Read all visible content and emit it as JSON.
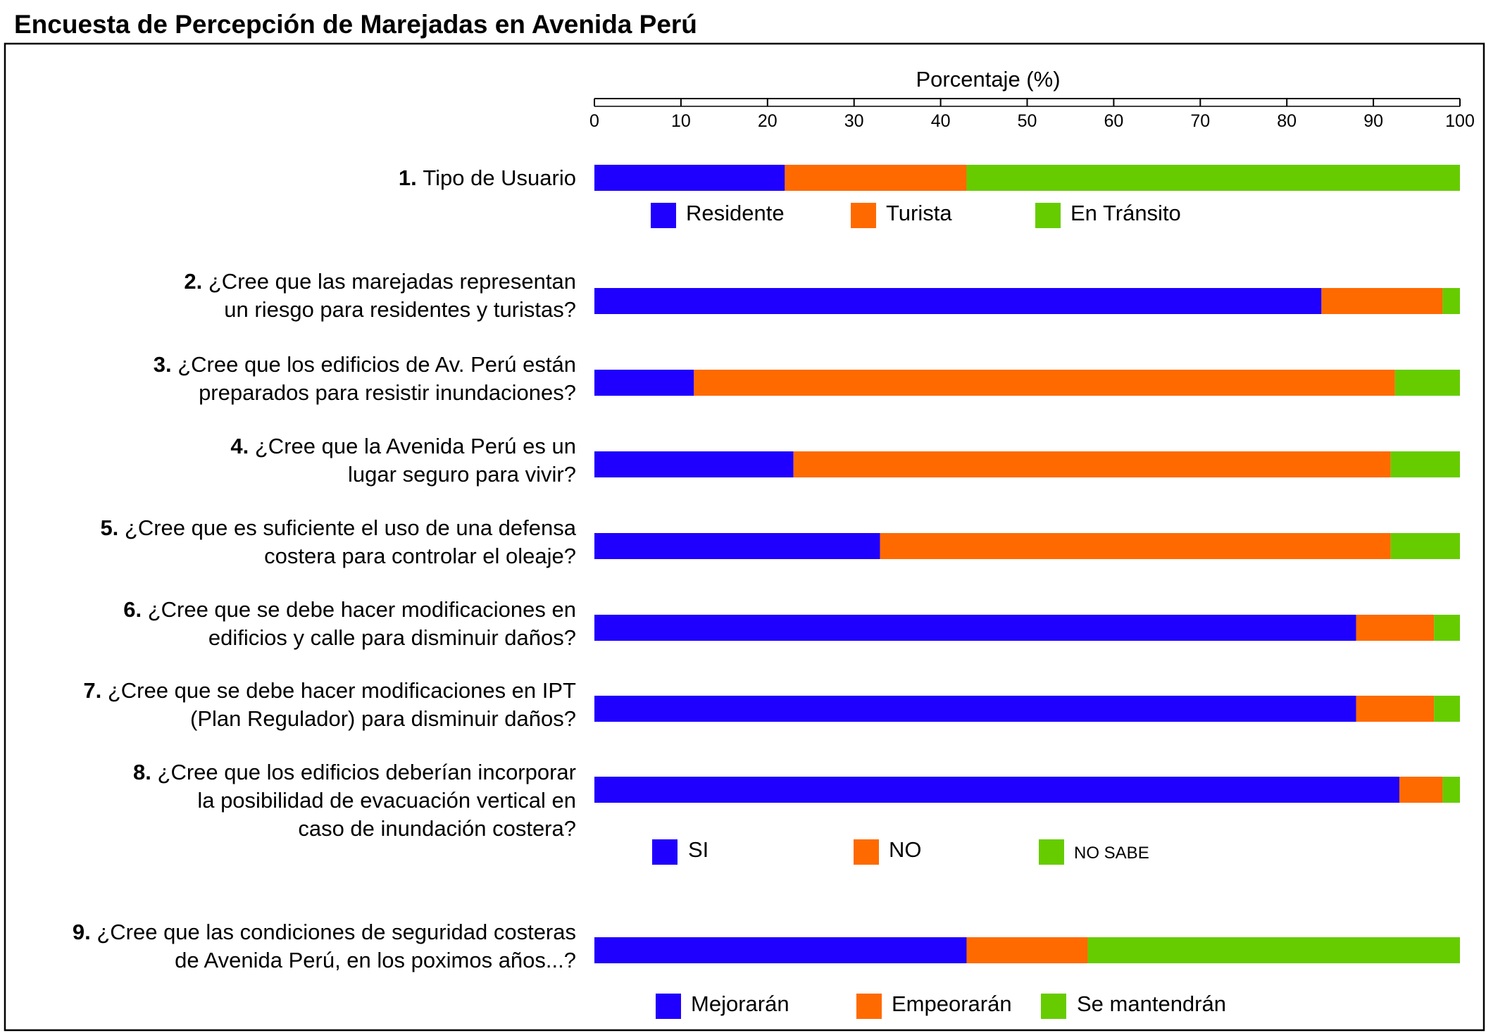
{
  "chart_data": {
    "type": "bar",
    "orientation": "horizontal-stacked",
    "title": "Encuesta de Percepción de Marejadas en Avenida Perú",
    "xlabel": "Porcentaje (%)",
    "xlim": [
      0,
      100
    ],
    "ticks": [
      "0",
      "10",
      "20",
      "30",
      "40",
      "50",
      "60",
      "70",
      "80",
      "90",
      "100"
    ],
    "questions": [
      {
        "num": "1.",
        "lines": [
          "Tipo de Usuario"
        ],
        "legend": "user",
        "values": [
          22,
          21,
          57
        ]
      },
      {
        "num": "2.",
        "lines": [
          "¿Cree que las marejadas representan",
          "un riesgo para residentes y turistas?"
        ],
        "legend": "sino",
        "values": [
          84,
          14,
          2
        ]
      },
      {
        "num": "3.",
        "lines": [
          "¿Cree que los edificios de Av. Perú están",
          "preparados para resistir inundaciones?"
        ],
        "legend": "sino",
        "values": [
          11.5,
          81,
          7.5
        ]
      },
      {
        "num": "4.",
        "lines": [
          "¿Cree que la Avenida Perú es un",
          "lugar seguro para vivir?"
        ],
        "legend": "sino",
        "values": [
          23,
          69,
          8
        ]
      },
      {
        "num": "5.",
        "lines": [
          "¿Cree que es suficiente el uso de una defensa",
          "costera para controlar el oleaje?"
        ],
        "legend": "sino",
        "values": [
          33,
          59,
          8
        ]
      },
      {
        "num": "6.",
        "lines": [
          "¿Cree que se debe hacer modificaciones en",
          "edificios y calle para disminuir daños?"
        ],
        "legend": "sino",
        "values": [
          88,
          9,
          3
        ]
      },
      {
        "num": "7.",
        "lines": [
          "¿Cree que se debe hacer modificaciones en IPT",
          "(Plan Regulador) para disminuir daños?"
        ],
        "legend": "sino",
        "values": [
          88,
          9,
          3
        ]
      },
      {
        "num": "8.",
        "lines": [
          "¿Cree que los edificios deberían incorporar",
          "la posibilidad de evacuación vertical en",
          "caso de inundación costera?"
        ],
        "legend": "sino",
        "values": [
          93,
          5,
          2
        ]
      },
      {
        "num": "9.",
        "lines": [
          "¿Cree que las condiciones de seguridad costeras",
          "de Avenida Perú, en los poximos años...?"
        ],
        "legend": "future",
        "values": [
          43,
          14,
          43
        ]
      }
    ],
    "legends": {
      "user": [
        "Residente",
        "Turista",
        "En Tránsito"
      ],
      "sino": [
        "SI",
        "NO",
        "NO SABE"
      ],
      "future": [
        "Mejorarán",
        "Empeorarán",
        "Se mantendrán"
      ]
    },
    "colors": [
      "#1f00ff",
      "#ff6a00",
      "#66cc00"
    ]
  }
}
